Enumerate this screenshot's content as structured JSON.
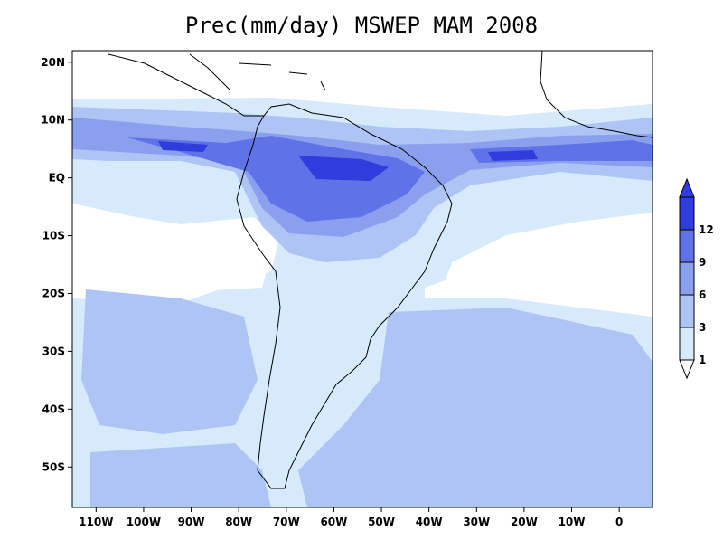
{
  "title": "Prec(mm/day) MSWEP MAM 2008",
  "colors": {
    "ocean_dry": "#ffffff",
    "level_1": "#d6eafb",
    "level_3": "#aec4f5",
    "level_6": "#8aa0ee",
    "level_9": "#5f72e8",
    "level_12": "#2f3ddc",
    "land_border": "#000000"
  },
  "map": {
    "lon_range": [
      -115,
      7
    ],
    "lat_range": [
      -57,
      22
    ],
    "lon_ticks": [
      {
        "value": -110,
        "label": "110W"
      },
      {
        "value": -100,
        "label": "100W"
      },
      {
        "value": -90,
        "label": "90W"
      },
      {
        "value": -80,
        "label": "80W"
      },
      {
        "value": -70,
        "label": "70W"
      },
      {
        "value": -60,
        "label": "60W"
      },
      {
        "value": -50,
        "label": "50W"
      },
      {
        "value": -40,
        "label": "40W"
      },
      {
        "value": -30,
        "label": "30W"
      },
      {
        "value": -20,
        "label": "20W"
      },
      {
        "value": -10,
        "label": "10W"
      },
      {
        "value": 0,
        "label": "0"
      }
    ],
    "lat_ticks": [
      {
        "value": 20,
        "label": "20N"
      },
      {
        "value": 10,
        "label": "10N"
      },
      {
        "value": 0,
        "label": "EQ"
      },
      {
        "value": -10,
        "label": "10S"
      },
      {
        "value": -20,
        "label": "20S"
      },
      {
        "value": -30,
        "label": "30S"
      },
      {
        "value": -40,
        "label": "40S"
      },
      {
        "value": -50,
        "label": "50S"
      }
    ]
  },
  "colorbar": {
    "levels": [
      "1",
      "3",
      "6",
      "9",
      "12"
    ],
    "units": "mm/day"
  }
}
